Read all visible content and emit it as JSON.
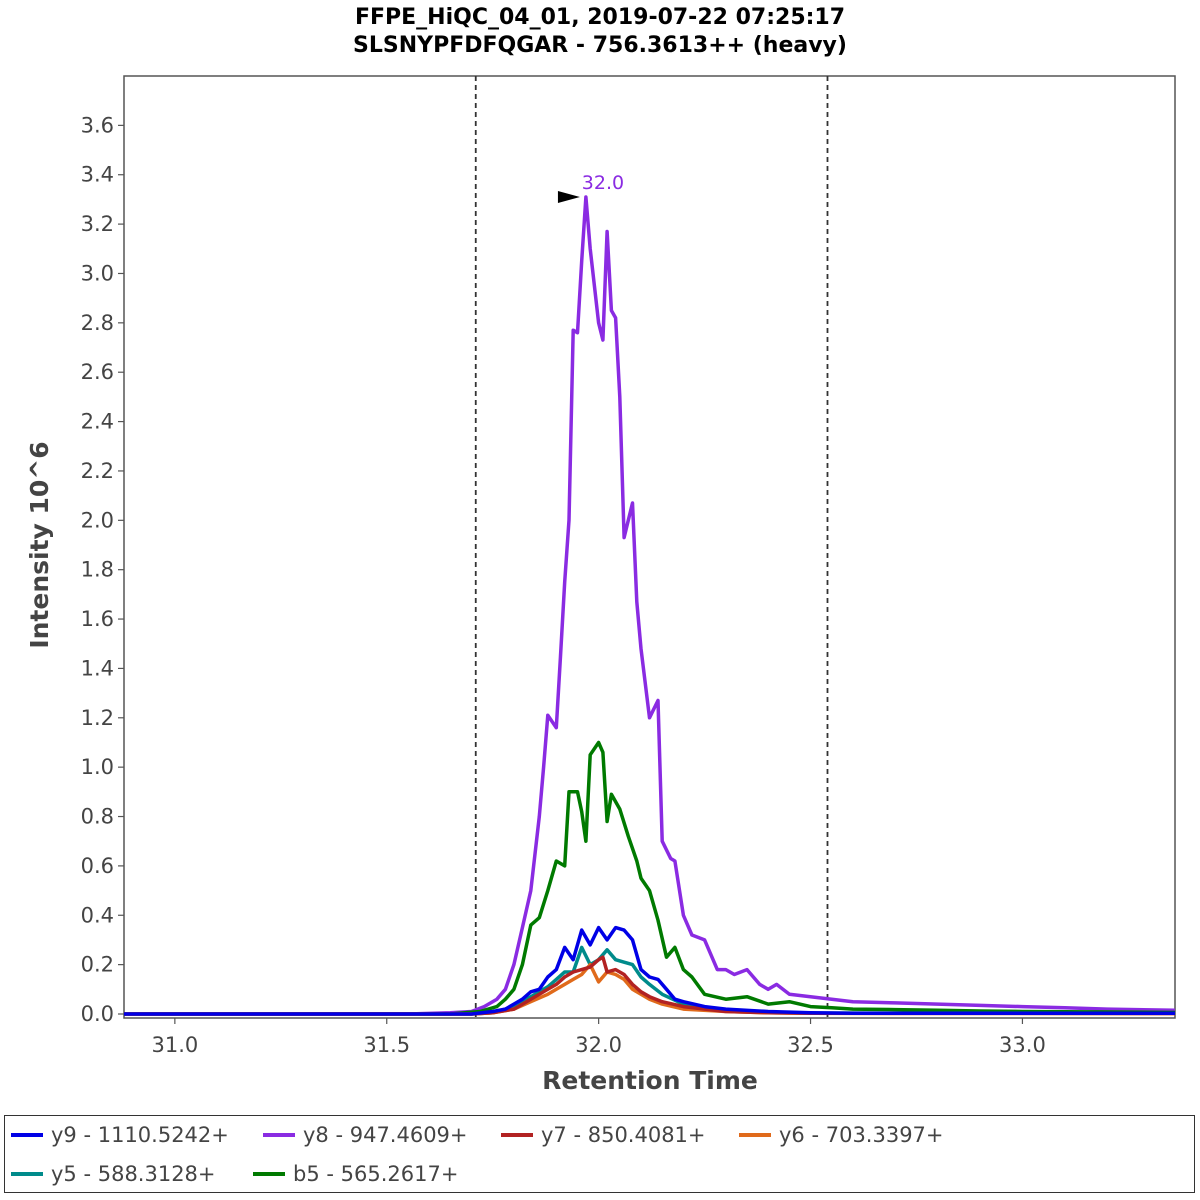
{
  "chart_data": {
    "type": "line",
    "title": [
      "FFPE_HiQC_04_01, 2019-07-22 07:25:17",
      "SLSNYPFDFQGAR - 756.3613++ (heavy)"
    ],
    "xlabel": "Retention Time",
    "ylabel": "Intensity 10^6",
    "xlim": [
      30.88,
      33.36
    ],
    "ylim": [
      0,
      3.8
    ],
    "x_ticks": [
      "31.0",
      "31.5",
      "32.0",
      "32.5",
      "33.0"
    ],
    "y_ticks": [
      "0.0",
      "0.2",
      "0.4",
      "0.6",
      "0.8",
      "1.0",
      "1.2",
      "1.4",
      "1.6",
      "1.8",
      "2.0",
      "2.2",
      "2.4",
      "2.6",
      "2.8",
      "3.0",
      "3.2",
      "3.4",
      "3.6"
    ],
    "grid": false,
    "legend_position": "bottom",
    "boundaries": [
      31.71,
      32.54
    ],
    "peak_annotation": {
      "text": "32.0",
      "x": 31.97,
      "y": 3.31,
      "color": "#8a2be2"
    },
    "series": [
      {
        "name": "y9 - 1110.5242+",
        "color": "#0000e6",
        "x": [
          30.88,
          31.6,
          31.7,
          31.75,
          31.78,
          31.8,
          31.82,
          31.84,
          31.86,
          31.88,
          31.9,
          31.92,
          31.94,
          31.96,
          31.98,
          32.0,
          32.02,
          32.04,
          32.06,
          32.08,
          32.1,
          32.12,
          32.14,
          32.16,
          32.18,
          32.2,
          32.25,
          32.3,
          32.4,
          32.5,
          32.6,
          33.36
        ],
        "y": [
          0,
          0,
          0,
          0.01,
          0.02,
          0.04,
          0.06,
          0.09,
          0.1,
          0.15,
          0.18,
          0.27,
          0.22,
          0.34,
          0.28,
          0.35,
          0.3,
          0.35,
          0.34,
          0.3,
          0.18,
          0.15,
          0.14,
          0.1,
          0.06,
          0.05,
          0.03,
          0.02,
          0.01,
          0.005,
          0.003,
          0.003
        ]
      },
      {
        "name": "y8 - 947.4609+",
        "color": "#8a2be2",
        "x": [
          30.88,
          31.55,
          31.65,
          31.7,
          31.73,
          31.76,
          31.78,
          31.8,
          31.82,
          31.84,
          31.86,
          31.87,
          31.88,
          31.9,
          31.91,
          31.92,
          31.93,
          31.94,
          31.95,
          31.96,
          31.97,
          31.98,
          32.0,
          32.01,
          32.02,
          32.03,
          32.04,
          32.05,
          32.06,
          32.08,
          32.09,
          32.1,
          32.12,
          32.14,
          32.15,
          32.17,
          32.18,
          32.2,
          32.22,
          32.25,
          32.28,
          32.3,
          32.32,
          32.35,
          32.38,
          32.4,
          32.42,
          32.45,
          32.5,
          32.55,
          32.6,
          32.7,
          32.8,
          32.9,
          33.0,
          33.1,
          33.2,
          33.36
        ],
        "y": [
          0,
          0,
          0.005,
          0.01,
          0.03,
          0.06,
          0.1,
          0.2,
          0.35,
          0.5,
          0.8,
          1.0,
          1.21,
          1.16,
          1.45,
          1.75,
          2.0,
          2.77,
          2.76,
          3.05,
          3.31,
          3.1,
          2.8,
          2.73,
          3.17,
          2.85,
          2.82,
          2.5,
          1.93,
          2.07,
          1.67,
          1.48,
          1.2,
          1.27,
          0.7,
          0.63,
          0.62,
          0.4,
          0.32,
          0.3,
          0.18,
          0.18,
          0.16,
          0.18,
          0.12,
          0.1,
          0.12,
          0.08,
          0.07,
          0.06,
          0.05,
          0.045,
          0.04,
          0.035,
          0.03,
          0.025,
          0.02,
          0.015
        ]
      },
      {
        "name": "y7 - 850.4081+",
        "color": "#b22222",
        "x": [
          30.88,
          31.7,
          31.75,
          31.8,
          31.84,
          31.88,
          31.9,
          31.92,
          31.94,
          31.96,
          31.98,
          32.0,
          32.01,
          32.02,
          32.04,
          32.06,
          32.08,
          32.1,
          32.12,
          32.15,
          32.2,
          32.3,
          32.4,
          32.5,
          33.36
        ],
        "y": [
          0,
          0,
          0.005,
          0.02,
          0.06,
          0.1,
          0.12,
          0.15,
          0.17,
          0.18,
          0.19,
          0.22,
          0.23,
          0.17,
          0.18,
          0.16,
          0.12,
          0.09,
          0.07,
          0.05,
          0.03,
          0.01,
          0.005,
          0.003,
          0.002
        ]
      },
      {
        "name": "y6 - 703.3397+",
        "color": "#e06a1b",
        "x": [
          30.88,
          31.7,
          31.75,
          31.8,
          31.84,
          31.88,
          31.9,
          31.92,
          31.94,
          31.96,
          31.98,
          32.0,
          32.02,
          32.04,
          32.06,
          32.08,
          32.1,
          32.12,
          32.15,
          32.2,
          32.3,
          32.4,
          32.5,
          33.36
        ],
        "y": [
          0,
          0,
          0.005,
          0.02,
          0.05,
          0.08,
          0.1,
          0.12,
          0.14,
          0.16,
          0.2,
          0.13,
          0.17,
          0.16,
          0.14,
          0.1,
          0.08,
          0.06,
          0.04,
          0.02,
          0.01,
          0.005,
          0.003,
          0.002
        ]
      },
      {
        "name": "y5 - 588.3128+",
        "color": "#008b8b",
        "x": [
          30.88,
          31.7,
          31.75,
          31.8,
          31.84,
          31.88,
          31.9,
          31.92,
          31.94,
          31.96,
          31.98,
          32.0,
          32.02,
          32.04,
          32.06,
          32.08,
          32.1,
          32.12,
          32.15,
          32.2,
          32.3,
          32.4,
          32.5,
          33.36
        ],
        "y": [
          0,
          0,
          0.005,
          0.03,
          0.07,
          0.11,
          0.14,
          0.17,
          0.17,
          0.27,
          0.2,
          0.22,
          0.26,
          0.22,
          0.21,
          0.2,
          0.15,
          0.12,
          0.08,
          0.04,
          0.015,
          0.007,
          0.004,
          0.003
        ]
      },
      {
        "name": "b5 - 565.2617+",
        "color": "#007a00",
        "x": [
          30.88,
          31.65,
          31.72,
          31.76,
          31.78,
          31.8,
          31.82,
          31.84,
          31.86,
          31.88,
          31.9,
          31.92,
          31.93,
          31.95,
          31.96,
          31.97,
          31.98,
          32.0,
          32.01,
          32.02,
          32.03,
          32.05,
          32.07,
          32.09,
          32.1,
          32.12,
          32.14,
          32.16,
          32.18,
          32.2,
          32.22,
          32.25,
          32.3,
          32.35,
          32.4,
          32.45,
          32.5,
          32.55,
          32.6,
          32.7,
          32.8,
          32.9,
          33.0,
          33.2,
          33.36
        ],
        "y": [
          0,
          0,
          0.01,
          0.03,
          0.06,
          0.1,
          0.2,
          0.36,
          0.39,
          0.5,
          0.62,
          0.6,
          0.9,
          0.9,
          0.82,
          0.7,
          1.05,
          1.1,
          1.06,
          0.78,
          0.89,
          0.83,
          0.72,
          0.62,
          0.55,
          0.5,
          0.38,
          0.23,
          0.27,
          0.18,
          0.15,
          0.08,
          0.06,
          0.07,
          0.04,
          0.05,
          0.03,
          0.025,
          0.02,
          0.018,
          0.015,
          0.012,
          0.01,
          0.008,
          0.006
        ]
      }
    ]
  }
}
